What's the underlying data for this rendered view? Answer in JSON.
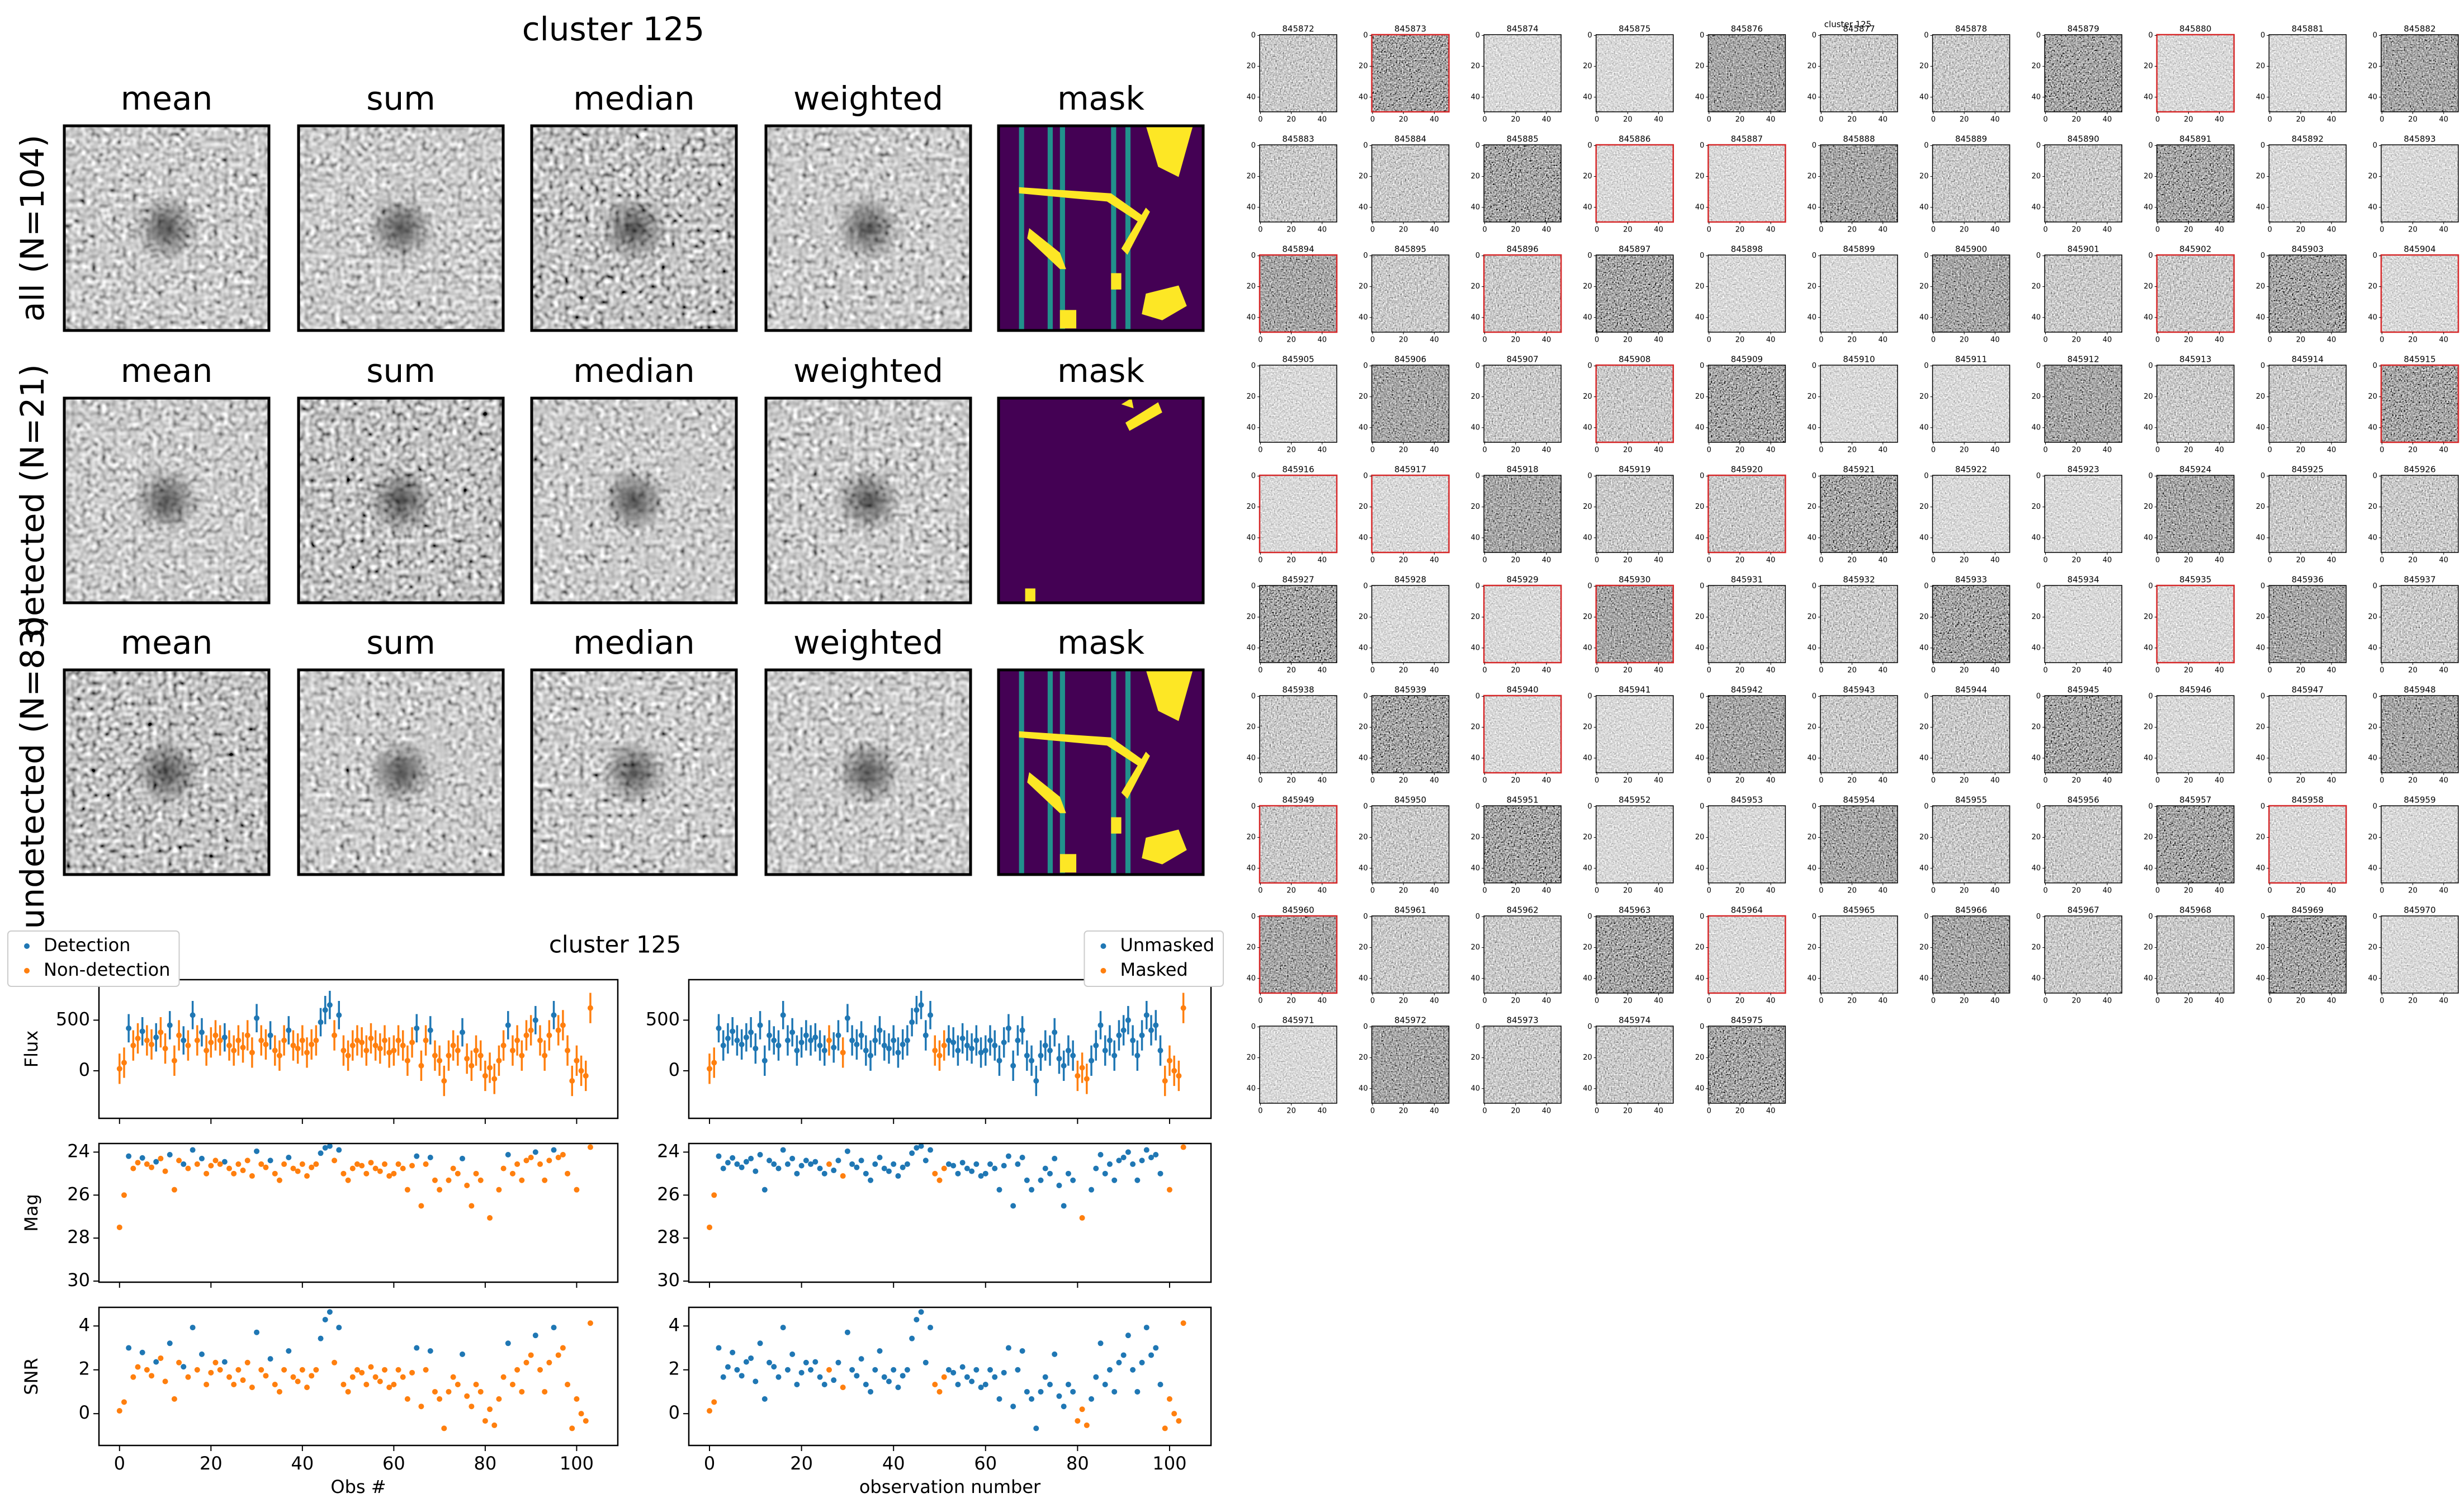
{
  "stacks": {
    "title": "cluster 125",
    "columns": [
      "mean",
      "sum",
      "median",
      "weighted",
      "mask"
    ],
    "rows": [
      "all (N=104)",
      "detected (N=21)",
      "undetected (N=83)"
    ]
  },
  "chart_data": {
    "type": "errorbar",
    "title": "cluster 125",
    "x": [
      0,
      1,
      2,
      3,
      4,
      5,
      6,
      7,
      8,
      9,
      10,
      11,
      12,
      13,
      14,
      15,
      16,
      17,
      18,
      19,
      20,
      21,
      22,
      23,
      24,
      25,
      26,
      27,
      28,
      29,
      30,
      31,
      32,
      33,
      34,
      35,
      36,
      37,
      38,
      39,
      40,
      41,
      42,
      43,
      44,
      45,
      46,
      47,
      48,
      49,
      50,
      51,
      52,
      53,
      54,
      55,
      56,
      57,
      58,
      59,
      60,
      61,
      62,
      63,
      64,
      65,
      66,
      67,
      68,
      69,
      70,
      71,
      72,
      73,
      74,
      75,
      76,
      77,
      78,
      79,
      80,
      81,
      82,
      83,
      84,
      85,
      86,
      87,
      88,
      89,
      90,
      91,
      92,
      93,
      94,
      95,
      96,
      97,
      98,
      99,
      100,
      101,
      102,
      103
    ],
    "xlim": [
      -4.5,
      109
    ],
    "xticks": [
      0,
      20,
      40,
      60,
      80,
      100
    ],
    "xlabels": [
      "Obs #",
      "observation number"
    ],
    "flux": {
      "ylabel": "Flux",
      "ylim": [
        -470,
        900
      ],
      "yticks": [
        0,
        500
      ],
      "values": [
        20,
        80,
        420,
        250,
        320,
        390,
        300,
        260,
        330,
        380,
        220,
        450,
        100,
        350,
        300,
        250,
        550,
        300,
        380,
        200,
        280,
        350,
        300,
        330,
        250,
        200,
        300,
        230,
        350,
        180,
        520,
        300,
        260,
        350,
        200,
        150,
        300,
        400,
        250,
        220,
        300,
        180,
        260,
        300,
        480,
        600,
        650,
        350,
        550,
        200,
        150,
        250,
        300,
        280,
        200,
        320,
        250,
        220,
        300,
        180,
        200,
        300,
        250,
        100,
        280,
        420,
        50,
        300,
        400,
        150,
        100,
        -100,
        150,
        250,
        200,
        380,
        120,
        50,
        200,
        150,
        -50,
        30,
        -80,
        100,
        250,
        450,
        200,
        300,
        150,
        350,
        400,
        500,
        300,
        150,
        350,
        550,
        400,
        450,
        200,
        -100,
        100,
        0,
        -50,
        620
      ],
      "errors": [
        150,
        150,
        140,
        150,
        150,
        140,
        150,
        150,
        140,
        150,
        150,
        140,
        150,
        150,
        140,
        150,
        140,
        150,
        140,
        150,
        150,
        150,
        150,
        140,
        150,
        150,
        150,
        150,
        150,
        150,
        140,
        150,
        150,
        140,
        150,
        150,
        150,
        140,
        150,
        150,
        150,
        150,
        150,
        150,
        140,
        140,
        140,
        150,
        140,
        150,
        150,
        150,
        150,
        150,
        150,
        150,
        150,
        150,
        150,
        150,
        150,
        150,
        150,
        150,
        150,
        140,
        150,
        150,
        140,
        150,
        150,
        150,
        150,
        150,
        150,
        140,
        150,
        150,
        150,
        150,
        150,
        150,
        150,
        150,
        150,
        140,
        150,
        150,
        150,
        150,
        150,
        140,
        150,
        150,
        150,
        140,
        150,
        150,
        150,
        150,
        150,
        150,
        150,
        150
      ]
    },
    "mag": {
      "ylabel": "Mag",
      "ylim": [
        30.05,
        23.6
      ],
      "yticks": [
        24,
        26,
        28,
        30
      ],
      "values": [
        27.5,
        26.0,
        24.19,
        24.76,
        24.49,
        24.27,
        24.56,
        24.71,
        24.45,
        24.3,
        24.89,
        24.12,
        25.75,
        24.39,
        24.56,
        24.76,
        23.9,
        24.56,
        24.3,
        25.0,
        24.63,
        24.39,
        24.56,
        24.45,
        24.76,
        25.0,
        24.56,
        24.85,
        24.39,
        25.11,
        23.96,
        24.56,
        24.71,
        24.39,
        25.0,
        25.31,
        24.56,
        24.25,
        24.76,
        24.89,
        24.56,
        25.11,
        24.71,
        24.56,
        24.05,
        23.8,
        23.72,
        24.39,
        23.9,
        25.0,
        25.31,
        24.76,
        24.56,
        24.63,
        25.0,
        24.49,
        24.76,
        24.89,
        24.56,
        25.11,
        25.0,
        24.56,
        24.76,
        25.75,
        24.63,
        24.19,
        26.5,
        24.56,
        24.25,
        25.31,
        25.75,
        null,
        25.31,
        24.76,
        25.0,
        24.3,
        25.55,
        26.5,
        25.0,
        25.31,
        null,
        27.06,
        null,
        25.75,
        24.76,
        24.12,
        25.0,
        24.56,
        25.31,
        24.39,
        24.25,
        24.0,
        24.56,
        25.31,
        24.39,
        23.9,
        24.25,
        24.12,
        25.0,
        null,
        25.75,
        null,
        null,
        23.77
      ]
    },
    "snr": {
      "ylabel": "SNR",
      "ylim": [
        -1.45,
        4.85
      ],
      "yticks": [
        0,
        2,
        4
      ],
      "values": [
        0.13,
        0.53,
        3.0,
        1.67,
        2.13,
        2.79,
        2.0,
        1.73,
        2.36,
        2.53,
        1.47,
        3.21,
        0.67,
        2.33,
        2.14,
        1.67,
        3.93,
        2.0,
        2.71,
        1.33,
        1.87,
        2.33,
        2.0,
        2.36,
        1.67,
        1.33,
        2.0,
        1.53,
        2.33,
        1.2,
        3.71,
        2.0,
        1.73,
        2.5,
        1.33,
        1.0,
        2.0,
        2.86,
        1.67,
        1.47,
        2.0,
        1.2,
        1.73,
        2.0,
        3.43,
        4.29,
        4.64,
        2.33,
        3.93,
        1.33,
        1.0,
        1.67,
        2.0,
        1.87,
        1.33,
        2.13,
        1.67,
        1.47,
        2.0,
        1.2,
        1.33,
        2.0,
        1.67,
        0.67,
        1.87,
        3.0,
        0.33,
        2.0,
        2.86,
        1.0,
        0.67,
        -0.67,
        1.0,
        1.67,
        1.33,
        2.71,
        0.8,
        0.33,
        1.33,
        1.0,
        -0.33,
        0.2,
        -0.53,
        0.67,
        1.67,
        3.21,
        1.33,
        2.0,
        1.0,
        2.33,
        2.67,
        3.57,
        2.0,
        1.0,
        2.33,
        3.93,
        2.67,
        3.0,
        1.33,
        -0.67,
        0.67,
        0.0,
        -0.33,
        4.13
      ]
    },
    "groupings": [
      {
        "legend": "upper left",
        "series": [
          {
            "name": "Detection",
            "color": "#1f77b4"
          },
          {
            "name": "Non-detection",
            "color": "#ff7f0e"
          }
        ],
        "group": [
          1,
          1,
          0,
          1,
          1,
          0,
          1,
          1,
          0,
          1,
          1,
          0,
          1,
          1,
          0,
          1,
          0,
          1,
          0,
          1,
          1,
          1,
          1,
          0,
          1,
          1,
          1,
          1,
          1,
          1,
          0,
          1,
          1,
          0,
          1,
          1,
          1,
          0,
          1,
          1,
          1,
          1,
          1,
          1,
          0,
          0,
          0,
          1,
          0,
          1,
          1,
          1,
          1,
          1,
          1,
          1,
          1,
          1,
          1,
          1,
          1,
          1,
          1,
          1,
          1,
          0,
          1,
          1,
          0,
          1,
          1,
          1,
          1,
          1,
          1,
          0,
          1,
          1,
          1,
          1,
          1,
          1,
          1,
          1,
          1,
          0,
          1,
          1,
          1,
          1,
          1,
          0,
          1,
          1,
          1,
          0,
          1,
          1,
          1,
          1,
          1,
          1,
          1,
          1
        ]
      },
      {
        "legend": "upper right",
        "series": [
          {
            "name": "Unmasked",
            "color": "#1f77b4"
          },
          {
            "name": "Masked",
            "color": "#ff7f0e"
          }
        ],
        "group": [
          1,
          1,
          0,
          0,
          0,
          0,
          0,
          0,
          0,
          0,
          0,
          0,
          0,
          0,
          0,
          0,
          0,
          0,
          0,
          0,
          0,
          0,
          0,
          0,
          0,
          0,
          1,
          0,
          0,
          1,
          0,
          0,
          0,
          0,
          0,
          0,
          0,
          0,
          0,
          0,
          0,
          0,
          0,
          0,
          0,
          0,
          0,
          0,
          0,
          1,
          1,
          1,
          0,
          0,
          0,
          0,
          0,
          0,
          0,
          0,
          0,
          0,
          0,
          0,
          0,
          0,
          0,
          0,
          0,
          0,
          0,
          0,
          0,
          0,
          0,
          0,
          0,
          0,
          0,
          0,
          1,
          1,
          1,
          0,
          0,
          0,
          0,
          0,
          0,
          0,
          0,
          0,
          0,
          0,
          0,
          0,
          0,
          0,
          0,
          1,
          1,
          1,
          1,
          1
        ]
      }
    ]
  },
  "cutouts": {
    "title": "cluster 125",
    "ticks": [
      0,
      20,
      40
    ],
    "ids": [
      845872,
      845873,
      845874,
      845875,
      845876,
      845877,
      845878,
      845879,
      845880,
      845881,
      845882,
      845883,
      845884,
      845885,
      845886,
      845887,
      845888,
      845889,
      845890,
      845891,
      845892,
      845893,
      845894,
      845895,
      845896,
      845897,
      845898,
      845899,
      845900,
      845901,
      845902,
      845903,
      845904,
      845905,
      845906,
      845907,
      845908,
      845909,
      845910,
      845911,
      845912,
      845913,
      845914,
      845915,
      845916,
      845917,
      845918,
      845919,
      845920,
      845921,
      845922,
      845923,
      845924,
      845925,
      845926,
      845927,
      845928,
      845929,
      845930,
      845931,
      845932,
      845933,
      845934,
      845935,
      845936,
      845937,
      845938,
      845939,
      845940,
      845941,
      845942,
      845943,
      845944,
      845945,
      845946,
      845947,
      845948,
      845949,
      845950,
      845951,
      845952,
      845953,
      845954,
      845955,
      845956,
      845957,
      845958,
      845959,
      845960,
      845961,
      845962,
      845963,
      845964,
      845965,
      845966,
      845967,
      845968,
      845969,
      845970,
      845971,
      845972,
      845973,
      845974,
      845975
    ],
    "flagged": [
      false,
      true,
      false,
      false,
      false,
      false,
      false,
      false,
      true,
      false,
      false,
      false,
      false,
      false,
      true,
      true,
      false,
      false,
      false,
      false,
      false,
      false,
      true,
      false,
      true,
      false,
      false,
      false,
      false,
      false,
      true,
      false,
      true,
      false,
      false,
      false,
      true,
      false,
      false,
      false,
      false,
      false,
      false,
      true,
      true,
      true,
      false,
      false,
      true,
      false,
      false,
      false,
      false,
      false,
      false,
      false,
      false,
      true,
      true,
      false,
      false,
      false,
      false,
      true,
      false,
      false,
      false,
      false,
      true,
      false,
      false,
      false,
      false,
      false,
      false,
      false,
      false,
      true,
      false,
      false,
      false,
      false,
      false,
      false,
      false,
      false,
      true,
      false,
      true,
      false,
      false,
      false,
      true,
      false,
      false,
      false,
      false,
      false,
      false,
      false,
      false,
      false,
      false,
      false
    ]
  }
}
